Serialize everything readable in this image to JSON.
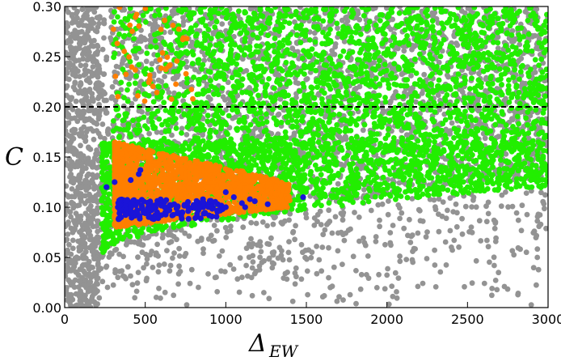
{
  "chart_data": {
    "type": "scatter",
    "xlabel": "Δ",
    "xlabel_sub": "EW",
    "ylabel": "C",
    "xlim": [
      0,
      3000
    ],
    "ylim": [
      0,
      0.3
    ],
    "x_ticks": [
      0,
      500,
      1000,
      1500,
      2000,
      2500,
      3000
    ],
    "x_tick_labels": [
      "0",
      "500",
      "1000",
      "1500",
      "2000",
      "2500",
      "3000"
    ],
    "y_ticks": [
      0,
      0.05,
      0.1,
      0.15,
      0.2,
      0.25,
      0.3
    ],
    "y_tick_labels": [
      "0.00",
      "0.05",
      "0.10",
      "0.15",
      "0.20",
      "0.25",
      "0.30"
    ],
    "grid": false,
    "reference_line": {
      "y": 0.2,
      "style": "dashed",
      "color": "#000000"
    },
    "series_colors": {
      "gray": "#939393",
      "green": "#22ee00",
      "orange": "#ff7f00",
      "blue": "#1a14d8"
    },
    "regions": {
      "gray_full_strip": {
        "x": [
          0,
          220
        ],
        "y": [
          0,
          0.3
        ]
      },
      "gray_band": {
        "x": [
          220,
          3000
        ],
        "y_low_at_start": 0.04,
        "y_low_at_end": 0.13,
        "y_high": 0.3
      },
      "gray_sparse": {
        "x": [
          60,
          3000
        ],
        "y_low": 0.0,
        "y_high_at_start": 0.05,
        "y_high_at_end": 0.12
      },
      "green_upper": {
        "x": [
          300,
          3000
        ],
        "y": [
          0.155,
          0.3
        ]
      },
      "green_lower": {
        "x": [
          230,
          3000
        ],
        "y_low_at_start": 0.05,
        "y_low_at_end": 0.12
      },
      "orange_core": {
        "x": [
          310,
          1400
        ],
        "y": [
          0.08,
          0.165
        ]
      },
      "orange_sparse_top": {
        "x": [
          300,
          800
        ],
        "y": [
          0.2,
          0.3
        ]
      }
    },
    "blue_points": [
      [
        260,
        0.12
      ],
      [
        310,
        0.125
      ],
      [
        330,
        0.1
      ],
      [
        340,
        0.094
      ],
      [
        350,
        0.09
      ],
      [
        360,
        0.1
      ],
      [
        370,
        0.097
      ],
      [
        380,
        0.093
      ],
      [
        400,
        0.1
      ],
      [
        410,
        0.127
      ],
      [
        420,
        0.095
      ],
      [
        430,
        0.105
      ],
      [
        450,
        0.097
      ],
      [
        460,
        0.133
      ],
      [
        470,
        0.137
      ],
      [
        480,
        0.1
      ],
      [
        500,
        0.094
      ],
      [
        520,
        0.103
      ],
      [
        540,
        0.097
      ],
      [
        560,
        0.1
      ],
      [
        580,
        0.104
      ],
      [
        600,
        0.092
      ],
      [
        620,
        0.1
      ],
      [
        650,
        0.097
      ],
      [
        680,
        0.103
      ],
      [
        700,
        0.1
      ],
      [
        730,
        0.095
      ],
      [
        760,
        0.102
      ],
      [
        800,
        0.1
      ],
      [
        830,
        0.097
      ],
      [
        860,
        0.1
      ],
      [
        900,
        0.105
      ],
      [
        950,
        0.103
      ],
      [
        1000,
        0.1
      ],
      [
        1050,
        0.11
      ],
      [
        1100,
        0.104
      ],
      [
        1150,
        0.108
      ],
      [
        1180,
        0.106
      ],
      [
        1260,
        0.103
      ],
      [
        1480,
        0.11
      ],
      [
        1000,
        0.115
      ],
      [
        1120,
        0.1
      ],
      [
        980,
        0.098
      ],
      [
        920,
        0.1
      ],
      [
        870,
        0.103
      ]
    ]
  }
}
